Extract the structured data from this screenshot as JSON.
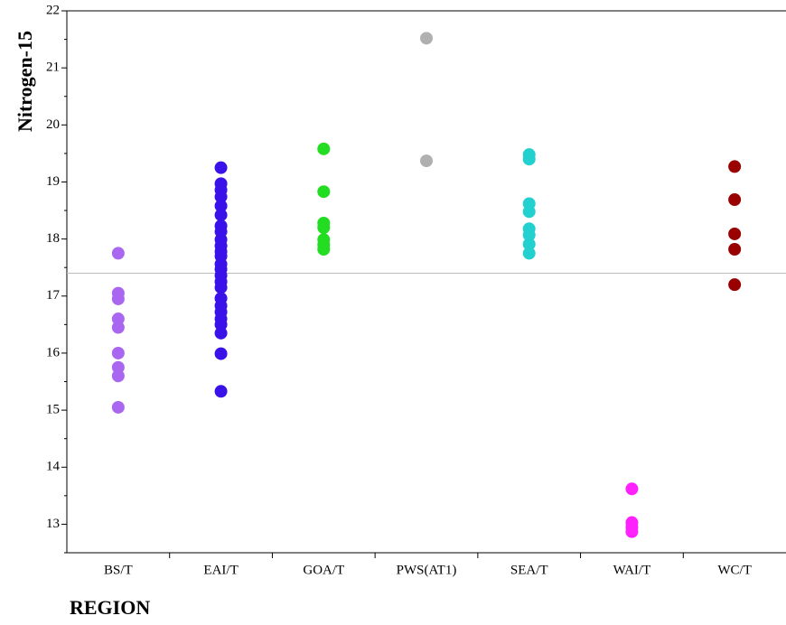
{
  "chart_data": {
    "type": "strip",
    "ylabel": "Nitrogen-15",
    "xlabel": "REGION",
    "categories": [
      "BS/T",
      "EAI/T",
      "GOA/T",
      "PWS(AT1)",
      "SEA/T",
      "WAI/T",
      "WC/T"
    ],
    "colors": [
      "#a966f0",
      "#3a11e8",
      "#22dd22",
      "#b0b0b0",
      "#22d0d0",
      "#ff22ff",
      "#990000"
    ],
    "values": [
      [
        17.75,
        17.05,
        16.95,
        16.6,
        16.45,
        16.0,
        15.75,
        15.6,
        15.05
      ],
      [
        19.25,
        18.97,
        18.86,
        18.74,
        18.58,
        18.42,
        18.23,
        18.13,
        17.99,
        17.88,
        17.78,
        17.7,
        17.56,
        17.47,
        17.36,
        17.25,
        17.15,
        16.96,
        16.83,
        16.72,
        16.6,
        16.5,
        16.35,
        15.99,
        15.33
      ],
      [
        19.58,
        18.83,
        18.28,
        18.2,
        17.99,
        17.9,
        17.82
      ],
      [
        21.52,
        19.37
      ],
      [
        19.48,
        19.4,
        18.62,
        18.48,
        18.18,
        18.07,
        17.91,
        17.75
      ],
      [
        13.62,
        13.03,
        12.95,
        12.87
      ],
      [
        19.27,
        18.69,
        18.09,
        17.82,
        17.2
      ]
    ],
    "reference_line": 17.4,
    "ylim": [
      12.5,
      22
    ],
    "yticks": [
      13,
      14,
      15,
      16,
      17,
      18,
      19,
      20,
      21,
      22
    ],
    "yminorticks": [
      12.5,
      13.5,
      14.5,
      15.5,
      16.5,
      17.5,
      18.5,
      19.5,
      20.5,
      21.5
    ]
  }
}
